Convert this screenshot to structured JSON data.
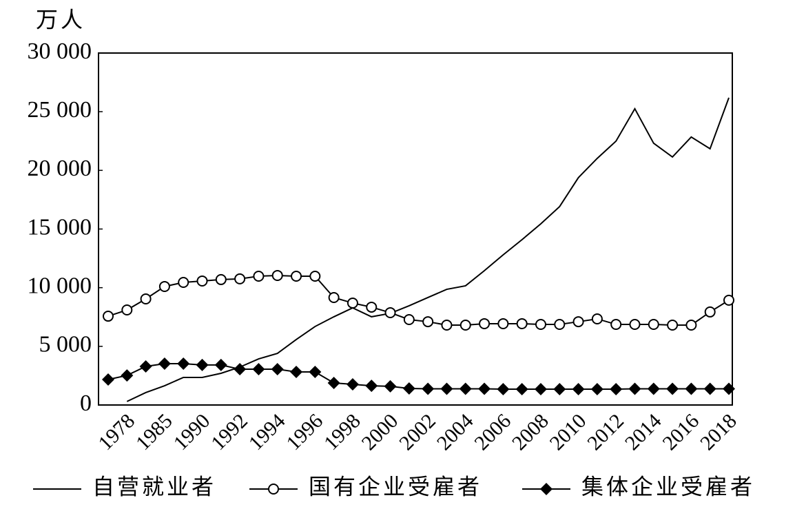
{
  "chart_data": {
    "type": "line",
    "y_unit": "万人",
    "categories": [
      null,
      "1978",
      null,
      "1985",
      null,
      "1990",
      null,
      "1992",
      null,
      "1994",
      null,
      "1996",
      null,
      "1998",
      null,
      "2000",
      null,
      "2002",
      null,
      "2004",
      null,
      "2006",
      null,
      "2008",
      null,
      "2010",
      null,
      "2012",
      null,
      "2014",
      null,
      "2016",
      null,
      "2018"
    ],
    "series": [
      {
        "name": "自营就业者",
        "color": "#000000",
        "marker": "none",
        "values": [
          null,
          300,
          1060,
          1640,
          2350,
          2350,
          2700,
          3230,
          3930,
          4400,
          5580,
          6690,
          7520,
          8280,
          7520,
          7810,
          8460,
          9160,
          9860,
          10160,
          11450,
          12800,
          14090,
          15440,
          16910,
          19380,
          21020,
          22490,
          25250,
          22310,
          21140,
          22840,
          21840,
          26190
        ]
      },
      {
        "name": "国有企业受雇者",
        "color": "#000000",
        "marker": "circle",
        "values": [
          7570,
          8100,
          9040,
          10100,
          10450,
          10570,
          10690,
          10750,
          10980,
          11040,
          10980,
          10980,
          9160,
          8690,
          8340,
          7870,
          7280,
          7100,
          6810,
          6810,
          6930,
          6930,
          6930,
          6870,
          6870,
          7100,
          7340,
          6870,
          6870,
          6870,
          6810,
          6810,
          7930,
          8930
        ]
      },
      {
        "name": "集体企业受雇者",
        "color": "#000000",
        "marker": "diamond",
        "values": [
          2170,
          2520,
          3290,
          3520,
          3520,
          3410,
          3410,
          3050,
          3050,
          3050,
          2820,
          2820,
          1880,
          1760,
          1640,
          1590,
          1410,
          1380,
          1380,
          1380,
          1380,
          1350,
          1350,
          1350,
          1350,
          1350,
          1350,
          1350,
          1380,
          1380,
          1380,
          1380,
          1380,
          1380
        ]
      }
    ],
    "ylim": [
      0,
      30000
    ],
    "yticks": [
      0,
      {
        "value": 5000,
        "label": "5 000"
      },
      {
        "value": 10000,
        "label": "10 000"
      },
      {
        "value": 15000,
        "label": "15 000"
      },
      {
        "value": 20000,
        "label": "20 000"
      },
      {
        "value": 25000,
        "label": "25 000"
      },
      {
        "value": 30000,
        "label": "30 000"
      }
    ],
    "grid": false
  }
}
